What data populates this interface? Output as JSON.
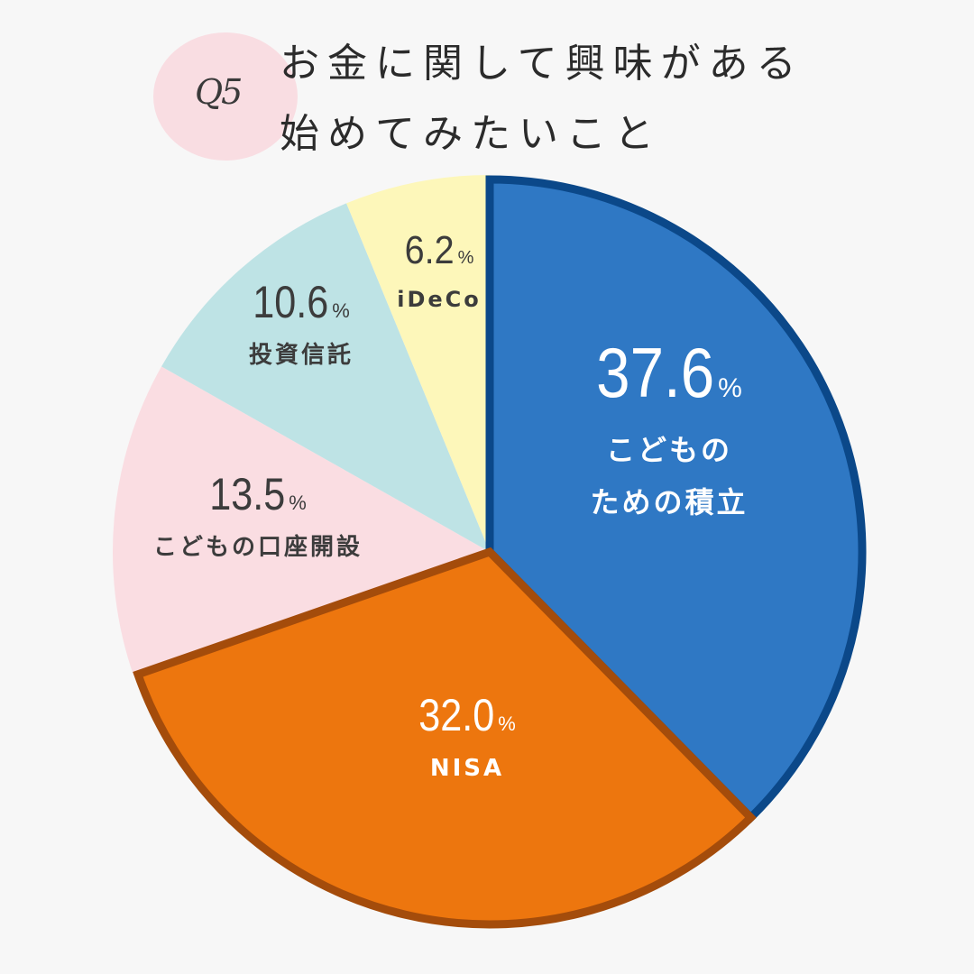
{
  "header": {
    "badge": "Q5",
    "title_line1": "お金に関して興味がある",
    "title_line2": "始めてみたいこと"
  },
  "chart_data": {
    "type": "pie",
    "title": "お金に関して興味がある 始めてみたいこと",
    "unit": "%",
    "start": "12 o'clock",
    "direction": "clockwise",
    "slices": [
      {
        "name_lines": [
          "こどもの",
          "ための積立"
        ],
        "value": 37.6,
        "value_label": "37.6",
        "color": "#2f78c4",
        "stroke": "#0b4889",
        "text_color": "#ffffff"
      },
      {
        "name_lines": [
          "NISA"
        ],
        "value": 32.0,
        "value_label": "32.0",
        "color": "#ed760e",
        "stroke": "#a44c0b",
        "text_color": "#ffffff"
      },
      {
        "name_lines": [
          "こどもの口座開設"
        ],
        "value": 13.5,
        "value_label": "13.5",
        "color": "#fadde2",
        "stroke": "",
        "text_color": "#3c3c3c"
      },
      {
        "name_lines": [
          "投資信託"
        ],
        "value": 10.6,
        "value_label": "10.6",
        "color": "#bee3e5",
        "stroke": "",
        "text_color": "#3c3c3c"
      },
      {
        "name_lines": [
          "iDeCo"
        ],
        "value": 6.2,
        "value_label": "6.2",
        "color": "#fdf7ba",
        "stroke": "",
        "text_color": "#3c3c3c"
      }
    ]
  }
}
